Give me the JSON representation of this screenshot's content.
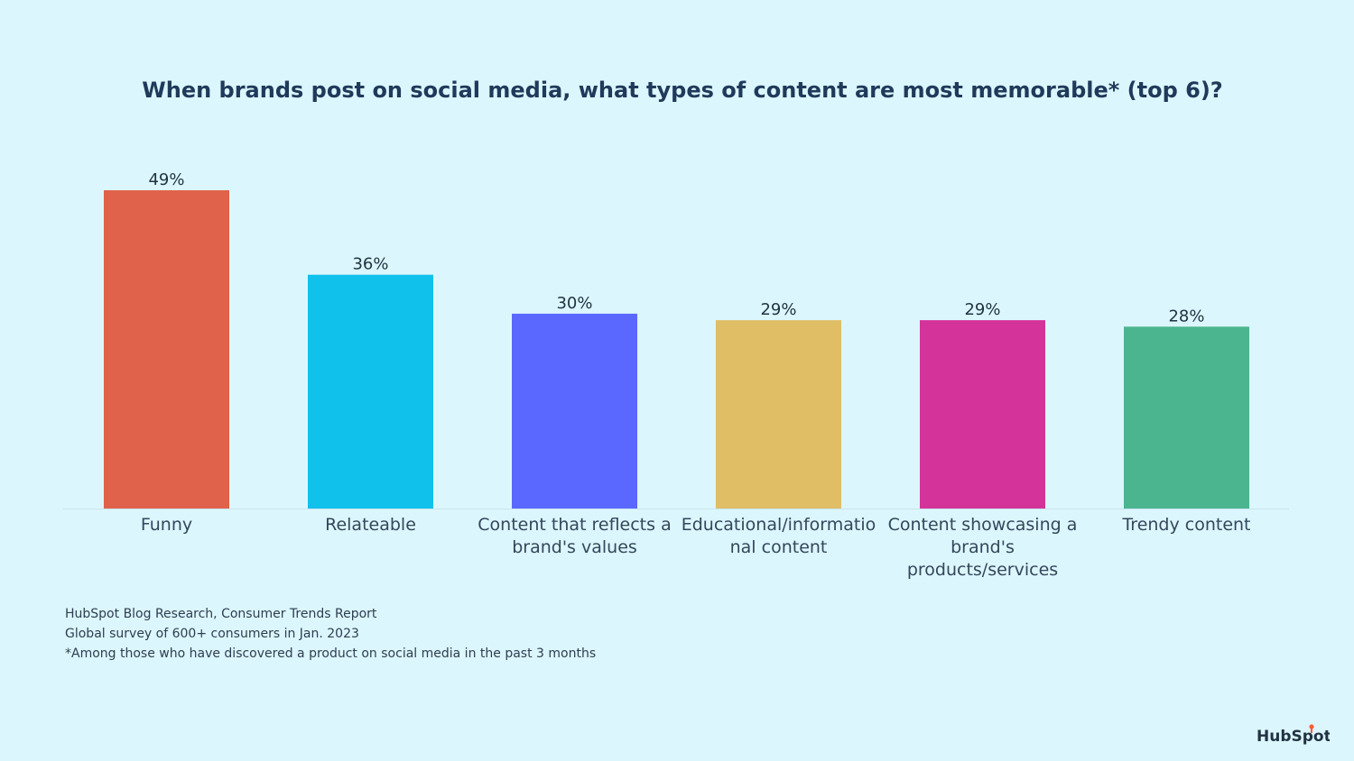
{
  "chart_data": {
    "type": "bar",
    "title": "When brands post on social media, what types of content are most memorable* (top 6)?",
    "categories": [
      "Funny",
      "Relateable",
      "Content that reflects a brand's values",
      "Educational/informatio nal content",
      "Content showcasing a brand's products/services",
      "Trendy content"
    ],
    "values": [
      49,
      36,
      30,
      29,
      29,
      28
    ],
    "value_labels": [
      "49%",
      "36%",
      "30%",
      "29%",
      "29%",
      "28%"
    ],
    "colors": [
      "#e0624a",
      "#0fc1eb",
      "#5a68ff",
      "#dfbe66",
      "#d4339a",
      "#4bb58f"
    ],
    "xlabel": "",
    "ylabel": "",
    "ylim": [
      0,
      49
    ],
    "grid": false,
    "legend": "none"
  },
  "footnotes": {
    "source": "HubSpot Blog Research, Consumer Trends Report",
    "survey": "Global survey of 600+ consumers in Jan. 2023",
    "note": "*Among those who have discovered a product on social media in the past 3 months"
  },
  "brand": {
    "logo_text": "HubSpot",
    "accent_color": "#ff5c35"
  }
}
